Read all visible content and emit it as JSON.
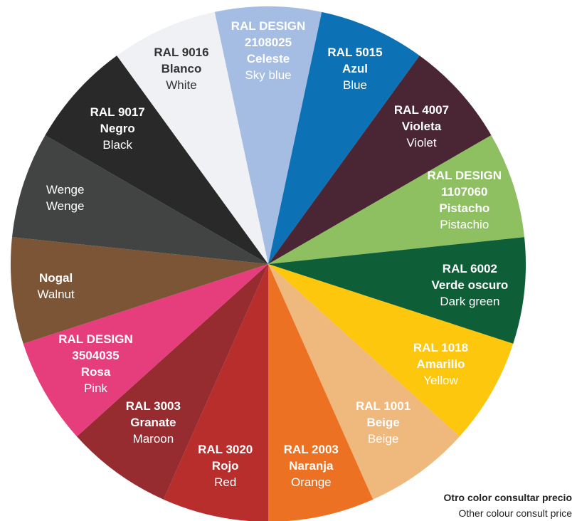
{
  "segments": [
    {
      "code": "RAL DESIGN 2108025",
      "code_lines": [
        "RAL DESIGN",
        "2108025"
      ],
      "es": "Celeste",
      "en": "Sky blue",
      "color": "#a5bde3",
      "text_color": "#ffffff"
    },
    {
      "code": "RAL 5015",
      "code_lines": [
        "RAL 5015"
      ],
      "es": "Azul",
      "en": "Blue",
      "color": "#0c71b5",
      "text_color": "#ffffff"
    },
    {
      "code": "RAL 4007",
      "code_lines": [
        "RAL 4007"
      ],
      "es": "Violeta",
      "en": "Violet",
      "color": "#4a2634",
      "text_color": "#ffffff"
    },
    {
      "code": "RAL DESIGN 1107060",
      "code_lines": [
        "RAL DESIGN",
        "1107060"
      ],
      "es": "Pistacho",
      "en": "Pistachio",
      "color": "#8ec062",
      "text_color": "#ffffff"
    },
    {
      "code": "RAL 6002",
      "code_lines": [
        "RAL 6002"
      ],
      "es": "Verde oscuro",
      "en": "Dark green",
      "color": "#0e5e38",
      "text_color": "#ffffff"
    },
    {
      "code": "RAL 1018",
      "code_lines": [
        "RAL 1018"
      ],
      "es": "Amarillo",
      "en": "Yellow",
      "color": "#fcc70c",
      "text_color": "#ffffff"
    },
    {
      "code": "RAL 1001",
      "code_lines": [
        "RAL 1001"
      ],
      "es": "Beige",
      "en": "Beige",
      "color": "#efb87d",
      "text_color": "#ffffff"
    },
    {
      "code": "RAL 2003",
      "code_lines": [
        "RAL 2003"
      ],
      "es": "Naranja",
      "en": "Orange",
      "color": "#ec7122",
      "text_color": "#ffffff"
    },
    {
      "code": "RAL 3020",
      "code_lines": [
        "RAL 3020"
      ],
      "es": "Rojo",
      "en": "Red",
      "color": "#b72e2d",
      "text_color": "#ffffff"
    },
    {
      "code": "RAL 3003",
      "code_lines": [
        "RAL 3003"
      ],
      "es": "Granate",
      "en": "Maroon",
      "color": "#962b30",
      "text_color": "#ffffff"
    },
    {
      "code": "RAL DESIGN 3504035",
      "code_lines": [
        "RAL DESIGN",
        "3504035"
      ],
      "es": "Rosa",
      "en": "Pink",
      "color": "#e63e7c",
      "text_color": "#ffffff"
    },
    {
      "code": "",
      "code_lines": [],
      "es": "Nogal",
      "en": "Walnut",
      "color": "#7b5535",
      "text_color": "#ffffff"
    },
    {
      "code": "",
      "code_lines": [],
      "es": "",
      "en_lines": [
        "Wenge",
        "Wenge"
      ],
      "en": "Wenge",
      "color": "#424444",
      "text_color": "#ffffff"
    },
    {
      "code": "RAL 9017",
      "code_lines": [
        "RAL 9017"
      ],
      "es": "Negro",
      "en": "Black",
      "color": "#2a2929",
      "text_color": "#ffffff"
    },
    {
      "code": "RAL 9016",
      "code_lines": [
        "RAL 9016"
      ],
      "es": "Blanco",
      "en": "White",
      "color": "#eff1f5",
      "text_color": "#333333"
    }
  ],
  "footnote": {
    "es": "Otro color consultar precio",
    "en": "Other colour consult price"
  }
}
